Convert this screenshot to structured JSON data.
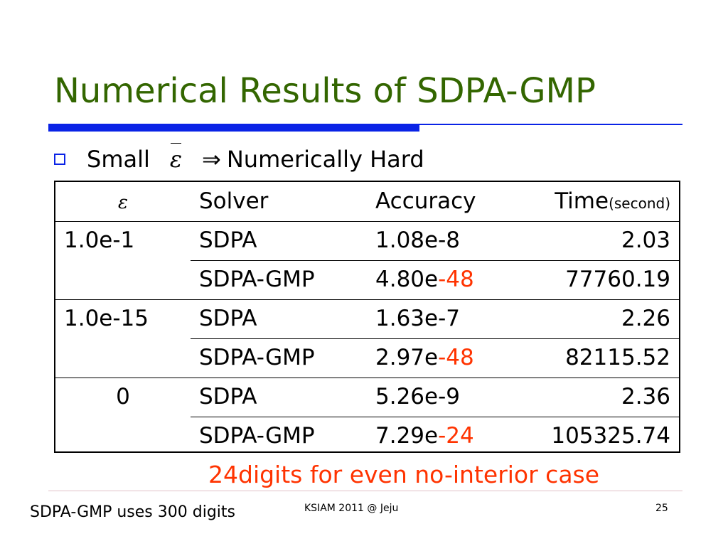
{
  "slide": {
    "title": "Numerical Results of SDPA-GMP",
    "bullet": {
      "prefix": "Small",
      "symbol": "ε",
      "arrow": "⇒",
      "suffix": "Numerically Hard"
    },
    "table": {
      "header": {
        "epsilon": "ε",
        "solver": "Solver",
        "accuracy": "Accuracy",
        "time": "Time",
        "time_unit": "(second)"
      },
      "rows": [
        {
          "epsilon": "1.0e-1",
          "solver": "SDPA",
          "acc_base": "1.08e-8",
          "acc_exp": "",
          "time": "2.03"
        },
        {
          "epsilon": "",
          "solver": "SDPA-GMP",
          "acc_base": "4.80e",
          "acc_exp": "-48",
          "time": "77760.19"
        },
        {
          "epsilon": "1.0e-15",
          "solver": "SDPA",
          "acc_base": "1.63e-7",
          "acc_exp": "",
          "time": "2.26"
        },
        {
          "epsilon": "",
          "solver": "SDPA-GMP",
          "acc_base": "2.97e",
          "acc_exp": "-48",
          "time": "82115.52"
        },
        {
          "epsilon": "0",
          "solver": "SDPA",
          "acc_base": "5.26e-9",
          "acc_exp": "",
          "time": "2.36"
        },
        {
          "epsilon": "",
          "solver": "SDPA-GMP",
          "acc_base": "7.29e",
          "acc_exp": "-24",
          "time": "105325.74"
        }
      ]
    },
    "note": "24digits for even no-interior case",
    "footer": {
      "left": "SDPA-GMP uses 300 digits",
      "center": "KSIAM 2011 @ Jeju",
      "page": "25"
    },
    "colors": {
      "title": "#336600",
      "accent_rule": "#0a23e6",
      "highlight": "#ff3300"
    }
  }
}
